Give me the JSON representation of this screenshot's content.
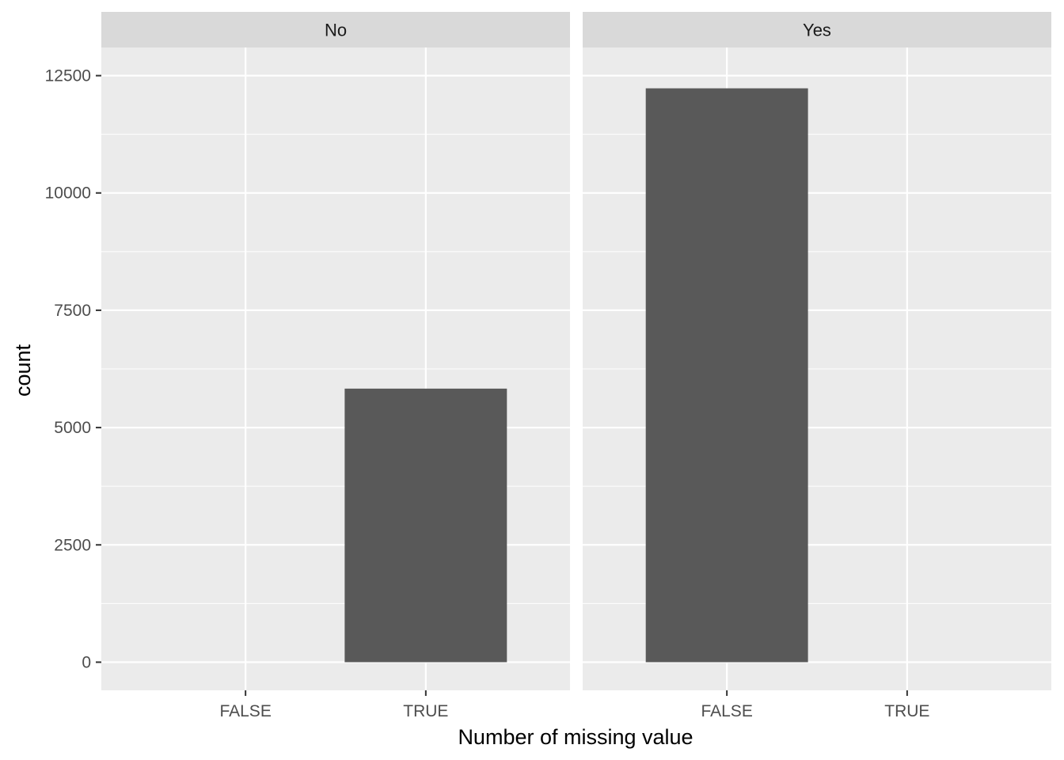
{
  "chart_data": {
    "type": "bar",
    "facet_by": "panel",
    "panels": [
      {
        "label": "No",
        "categories": [
          "FALSE",
          "TRUE"
        ],
        "values": [
          0,
          5830
        ]
      },
      {
        "label": "Yes",
        "categories": [
          "FALSE",
          "TRUE"
        ],
        "values": [
          12230,
          0
        ]
      }
    ],
    "xlabel": "Number of missing value",
    "ylabel": "count",
    "ylim": [
      -600,
      13100
    ],
    "yticks": [
      0,
      2500,
      5000,
      7500,
      10000,
      12500
    ],
    "ytick_labels": [
      "0",
      "2500",
      "5000",
      "7500",
      "10000",
      "12500"
    ],
    "grid": true,
    "bar_color": "#595959",
    "panel_background": "#ebebeb",
    "strip_background": "#d9d9d9",
    "grid_color": "#ffffff"
  }
}
